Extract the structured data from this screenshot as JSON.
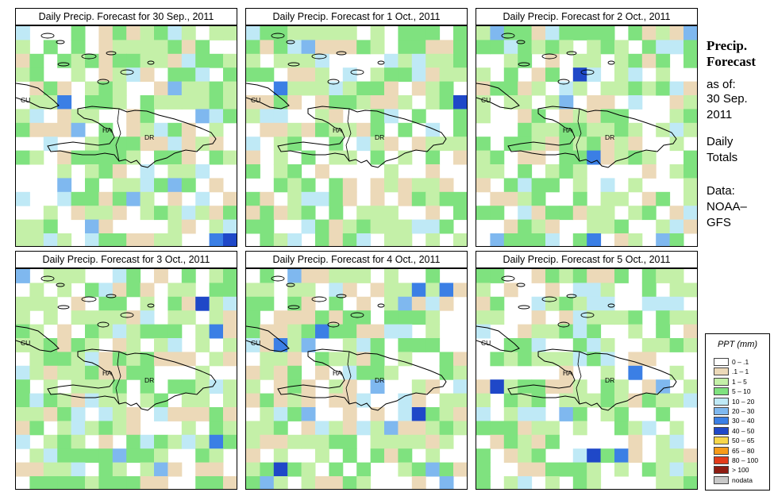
{
  "panels": [
    {
      "title": "Daily Precip. Forecast for  30 Sep., 2011"
    },
    {
      "title": "Daily Precip. Forecast for  1 Oct., 2011"
    },
    {
      "title": "Daily Precip. Forecast for  2 Oct., 2011"
    },
    {
      "title": "Daily Precip. Forecast for  3 Oct., 2011"
    },
    {
      "title": "Daily Precip. Forecast for  4 Oct., 2011"
    },
    {
      "title": "Daily Precip. Forecast for  5 Oct., 2011"
    }
  ],
  "map_labels": {
    "cu": "CU",
    "ha": "HA",
    "dr": "DR"
  },
  "sidebar": {
    "heading_1": "Precip.",
    "heading_2": "Forecast",
    "asof": "as of:",
    "date_1": "30 Sep.",
    "date_2": "2011",
    "daily": "Daily",
    "totals": "Totals",
    "data_label": "Data:",
    "source_1": "NOAA–",
    "source_2": "GFS"
  },
  "legend": {
    "title": "PPT (mm)",
    "items": [
      {
        "label": "0 – .1",
        "color": "#ffffff"
      },
      {
        "label": ".1 – 1",
        "color": "#ecd9b8"
      },
      {
        "label": "1 – 5",
        "color": "#c4f0a8"
      },
      {
        "label": "5 – 10",
        "color": "#7fe27f"
      },
      {
        "label": "10 – 20",
        "color": "#bfe9f6"
      },
      {
        "label": "20 – 30",
        "color": "#7fb8ef"
      },
      {
        "label": "30 – 40",
        "color": "#3b7fe5"
      },
      {
        "label": "40 – 50",
        "color": "#1f48c8"
      },
      {
        "label": "50 – 65",
        "color": "#f7d64a"
      },
      {
        "label": "65 – 80",
        "color": "#f79b1a"
      },
      {
        "label": "80 – 100",
        "color": "#e33b1a"
      },
      {
        "label": "> 100",
        "color": "#8e1c12"
      },
      {
        "label": "nodata",
        "color": "#c8c8c8"
      }
    ]
  }
}
